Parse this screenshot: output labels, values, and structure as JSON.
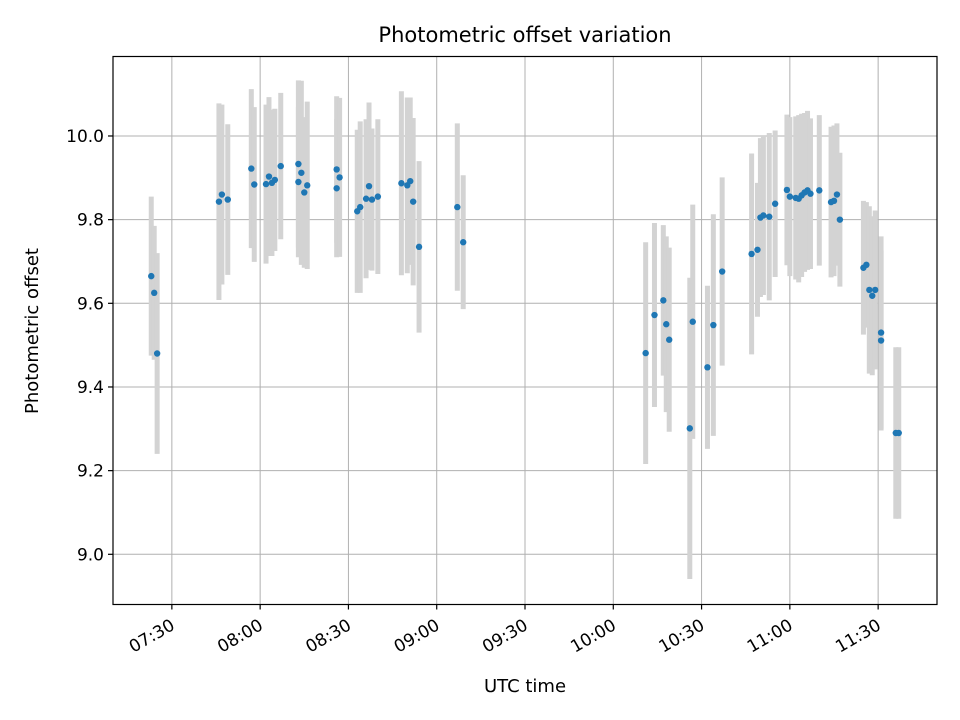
{
  "chart_data": {
    "type": "scatter",
    "title": "Photometric offset variation",
    "xlabel": "UTC time",
    "ylabel": "Photometric offset",
    "xlim": [
      "07:10",
      "11:50"
    ],
    "ylim": [
      8.88,
      10.19
    ],
    "x_ticks": [
      "07:30",
      "08:00",
      "08:30",
      "09:00",
      "09:30",
      "10:00",
      "10:30",
      "11:00",
      "11:30"
    ],
    "y_ticks": [
      "9.0",
      "9.2",
      "9.4",
      "9.6",
      "9.8",
      "10.0"
    ],
    "grid": true,
    "errorbar_color": "#d3d3d3",
    "marker_color": "#1f77b4",
    "series": [
      {
        "x": [
          "07:23",
          "07:24",
          "07:25",
          "07:46",
          "07:47",
          "07:49",
          "07:57",
          "07:58",
          "08:02",
          "08:03",
          "08:04",
          "08:05",
          "08:07",
          "08:13",
          "08:13",
          "08:14",
          "08:15",
          "08:16",
          "08:26",
          "08:26",
          "08:27",
          "08:33",
          "08:34",
          "08:36",
          "08:37",
          "08:38",
          "08:40",
          "08:48",
          "08:50",
          "08:51",
          "08:52",
          "08:54",
          "09:07",
          "09:09",
          "10:11",
          "10:14",
          "10:17",
          "10:18",
          "10:19",
          "10:26",
          "10:27",
          "10:32",
          "10:34",
          "10:37",
          "10:47",
          "10:49",
          "10:50",
          "10:51",
          "10:53",
          "10:55",
          "10:59",
          "11:00",
          "11:02",
          "11:03",
          "11:04",
          "11:05",
          "11:06",
          "11:07",
          "11:10",
          "11:14",
          "11:15",
          "11:16",
          "11:17",
          "11:25",
          "11:26",
          "11:27",
          "11:28",
          "11:29",
          "11:31",
          "11:31",
          "11:36",
          "11:37"
        ],
        "y": [
          9.665,
          9.625,
          9.48,
          9.843,
          9.86,
          9.848,
          9.922,
          9.884,
          9.885,
          9.903,
          9.888,
          9.895,
          9.928,
          9.89,
          9.933,
          9.912,
          9.865,
          9.882,
          9.92,
          9.875,
          9.901,
          9.82,
          9.83,
          9.85,
          9.88,
          9.848,
          9.855,
          9.887,
          9.882,
          9.892,
          9.843,
          9.735,
          9.83,
          9.746,
          9.481,
          9.572,
          9.607,
          9.55,
          9.513,
          9.301,
          9.556,
          9.447,
          9.548,
          9.676,
          9.718,
          9.728,
          9.805,
          9.81,
          9.807,
          9.838,
          9.871,
          9.855,
          9.852,
          9.85,
          9.858,
          9.865,
          9.87,
          9.862,
          9.87,
          9.842,
          9.845,
          9.86,
          9.8,
          9.685,
          9.692,
          9.632,
          9.618,
          9.632,
          9.53,
          9.511,
          9.29,
          9.29
        ],
        "yerr": [
          0.19,
          0.16,
          0.24,
          0.235,
          0.215,
          0.18,
          0.19,
          0.185,
          0.19,
          0.19,
          0.175,
          0.17,
          0.175,
          0.18,
          0.2,
          0.22,
          0.18,
          0.2,
          0.175,
          0.165,
          0.19,
          0.195,
          0.205,
          0.19,
          0.2,
          0.17,
          0.185,
          0.22,
          0.21,
          0.2,
          0.2,
          0.205,
          0.2,
          0.16,
          0.265,
          0.22,
          0.18,
          0.21,
          0.22,
          0.36,
          0.28,
          0.195,
          0.265,
          0.225,
          0.24,
          0.16,
          0.19,
          0.19,
          0.2,
          0.175,
          0.18,
          0.19,
          0.195,
          0.2,
          0.195,
          0.19,
          0.19,
          0.18,
          0.18,
          0.18,
          0.18,
          0.17,
          0.16,
          0.16,
          0.15,
          0.2,
          0.19,
          0.19,
          0.23,
          0.215,
          0.205,
          0.205
        ]
      }
    ]
  }
}
